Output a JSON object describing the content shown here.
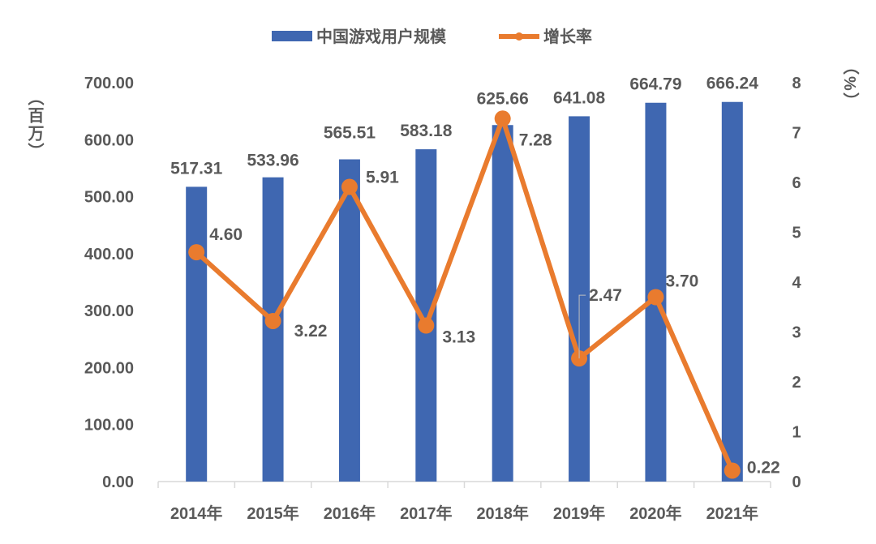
{
  "chart_data": {
    "type": "bar+line",
    "categories": [
      "2014年",
      "2015年",
      "2016年",
      "2017年",
      "2018年",
      "2019年",
      "2020年",
      "2021年"
    ],
    "series": [
      {
        "name": "中国游戏用户规模",
        "type": "bar",
        "axis": "left",
        "color": "#3F67B1",
        "values": [
          517.31,
          533.96,
          565.51,
          583.18,
          625.66,
          641.08,
          664.79,
          666.24
        ],
        "labels": [
          "517.31",
          "533.96",
          "565.51",
          "583.18",
          "625.66",
          "641.08",
          "664.79",
          "666.24"
        ]
      },
      {
        "name": "增长率",
        "type": "line",
        "axis": "right",
        "color": "#E97B2E",
        "values": [
          4.6,
          3.22,
          5.91,
          3.13,
          7.28,
          2.47,
          3.7,
          0.22
        ],
        "labels": [
          "4.60",
          "3.22",
          "5.91",
          "3.13",
          "7.28",
          "2.47",
          "3.70",
          "0.22"
        ]
      }
    ],
    "y_left": {
      "label": "（百万）",
      "range": [
        0,
        700
      ],
      "ticks": [
        "0.00",
        "100.00",
        "200.00",
        "300.00",
        "400.00",
        "500.00",
        "600.00",
        "700.00"
      ]
    },
    "y_right": {
      "label": "（%）",
      "range": [
        0,
        8
      ],
      "ticks": [
        "0",
        "1",
        "2",
        "3",
        "4",
        "5",
        "6",
        "7",
        "8"
      ]
    },
    "legend": {
      "placement": "top"
    },
    "grid": false
  }
}
